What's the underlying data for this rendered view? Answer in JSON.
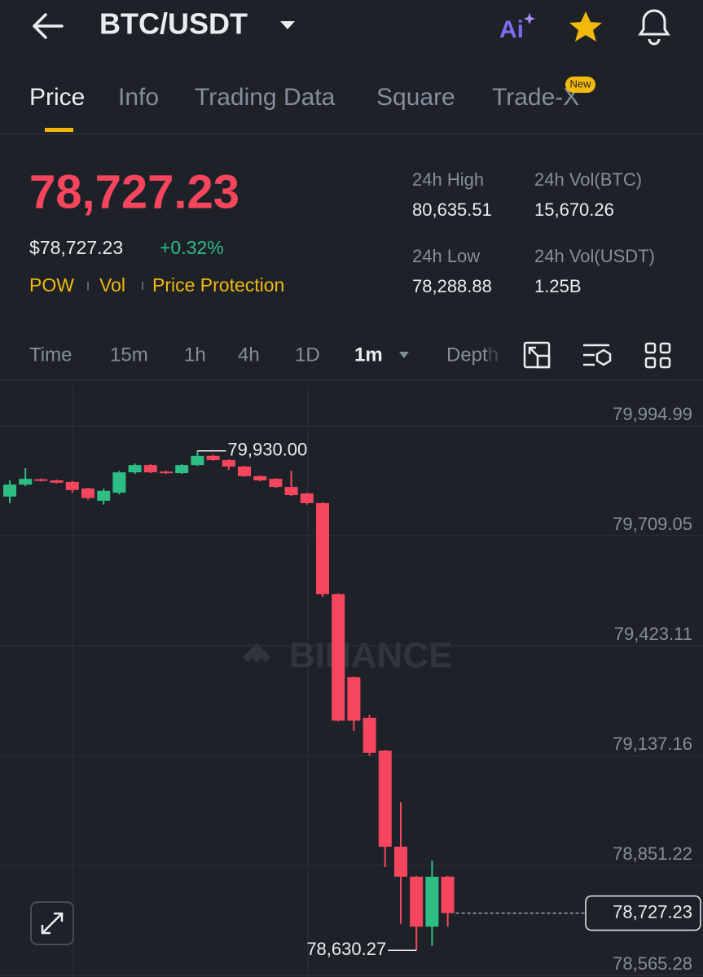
{
  "header": {
    "pair": "BTC/USDT"
  },
  "tabs": [
    "Price",
    "Info",
    "Trading Data",
    "Square",
    "Trade-X"
  ],
  "tab_badge": "New",
  "price": {
    "last": "78,727.23",
    "usd": "$78,727.23",
    "change": "+0.32%",
    "tags": [
      "POW",
      "Vol",
      "Price Protection"
    ]
  },
  "stats": [
    {
      "label": "24h High",
      "value": "80,635.51"
    },
    {
      "label": "24h Vol(BTC)",
      "value": "15,670.26"
    },
    {
      "label": "24h Low",
      "value": "78,288.88"
    },
    {
      "label": "24h Vol(USDT)",
      "value": "1.25B"
    }
  ],
  "timeframes": [
    "Time",
    "15m",
    "1h",
    "4h",
    "1D",
    "1m",
    "Depth"
  ],
  "watermark": "BINANCE",
  "chart_data": {
    "type": "candlestick",
    "up_color": "#2ebd85",
    "down_color": "#f6465d",
    "open": [
      79811,
      79842,
      79856,
      79853,
      79849,
      79832,
      79800,
      79821,
      79874,
      79893,
      79876,
      79872,
      79893,
      79917,
      79906,
      79889,
      79864,
      79857,
      79836,
      79819,
      79794,
      79557,
      79341,
      79235,
      79150,
      78900,
      78822,
      78692,
      78822
    ],
    "high": [
      79853,
      79885,
      79858,
      79855,
      79851,
      79834,
      79831,
      79878,
      79897,
      79895,
      79878,
      79895,
      79930,
      79920,
      79908,
      79891,
      79866,
      79859,
      79878,
      79821,
      79796,
      79559,
      79343,
      79243,
      79152,
      79016,
      78824,
      78864,
      78824
    ],
    "low": [
      79794,
      79838,
      79850,
      79845,
      79821,
      79803,
      79790,
      79817,
      79870,
      79872,
      79870,
      79870,
      79890,
      79904,
      79880,
      79862,
      79851,
      79833,
      79812,
      79790,
      79550,
      79226,
      79201,
      79137,
      78847,
      78699,
      78630.27,
      78642,
      78692
    ],
    "close": [
      79842,
      79857,
      79852,
      79847,
      79828,
      79807,
      79826,
      79874,
      79893,
      79874,
      79872,
      79893,
      79917,
      79906,
      79889,
      79864,
      79853,
      79836,
      79815,
      79794,
      79557,
      79228,
      79228,
      79144,
      78900,
      78822,
      78692,
      78822,
      78727.23
    ],
    "ylim": [
      78561,
      80096.7
    ],
    "yticks": [
      {
        "value": 79994.99,
        "label": "79,994.99"
      },
      {
        "value": 79709.05,
        "label": "79,709.05"
      },
      {
        "value": 79423.11,
        "label": "79,423.11"
      },
      {
        "value": 79137.16,
        "label": "79,137.16"
      },
      {
        "value": 78851.22,
        "label": "78,851.22"
      },
      {
        "value": 78565.28,
        "label": "78,565.28"
      }
    ],
    "grid": true,
    "high_label": {
      "value": 79930,
      "label": "79,930.00"
    },
    "low_label": {
      "value": 78630.27,
      "label": "78,630.27"
    },
    "last_label": {
      "value": 78727.23,
      "label": "78,727.23"
    }
  }
}
